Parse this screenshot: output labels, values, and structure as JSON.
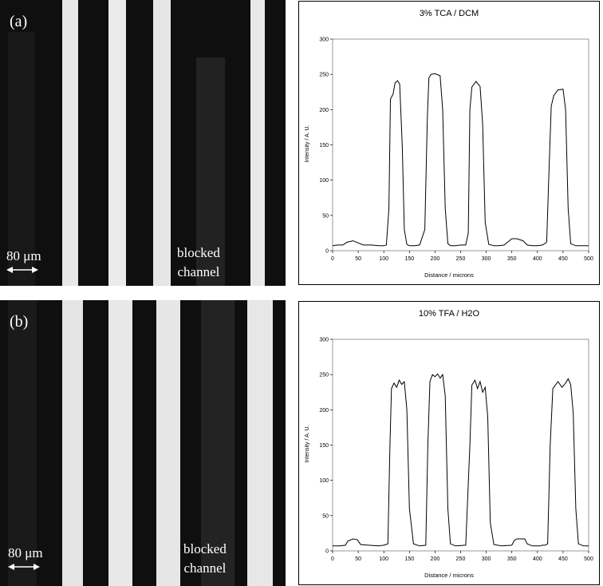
{
  "panels": [
    {
      "label": "(a)",
      "scale_text": "80 μm",
      "blocked_lines": [
        "blocked",
        "channel"
      ]
    },
    {
      "label": "(b)",
      "scale_text": "80 μm",
      "blocked_lines": [
        "blocked",
        "channel"
      ]
    }
  ],
  "colors": {
    "line": "#000000",
    "bright_stripe": "#e6e6e6",
    "dark_background": "#0f0f0f"
  },
  "chart_data": [
    {
      "type": "line",
      "title": "3% TCA / DCM",
      "xlabel": "Distance / microns",
      "ylabel": "Intensity / A. U.",
      "xlim": [
        0,
        500
      ],
      "ylim": [
        0,
        300
      ],
      "xticks": [
        "0",
        "50",
        "100",
        "150",
        "200",
        "250",
        "300",
        "350",
        "400",
        "450",
        "500"
      ],
      "yticks": [
        "0",
        "50",
        "100",
        "150",
        "200",
        "250",
        "300"
      ],
      "grid": false,
      "series": [
        {
          "x": [
            0,
            10,
            20,
            28,
            40,
            50,
            60,
            75,
            90,
            100,
            105,
            110,
            113,
            118,
            122,
            127,
            131,
            136,
            140,
            145,
            150,
            160,
            170,
            180,
            185,
            188,
            192,
            200,
            210,
            215,
            220,
            225,
            230,
            240,
            250,
            260,
            265,
            268,
            272,
            280,
            288,
            293,
            298,
            305,
            315,
            325,
            335,
            345,
            350,
            360,
            372,
            380,
            390,
            400,
            410,
            418,
            422,
            427,
            432,
            440,
            450,
            455,
            460,
            465,
            475,
            485,
            500
          ],
          "y": [
            7,
            8,
            8,
            12,
            14,
            11,
            8,
            8,
            7,
            7,
            8,
            60,
            215,
            222,
            238,
            241,
            236,
            150,
            30,
            9,
            7,
            7,
            8,
            30,
            190,
            245,
            250,
            251,
            248,
            200,
            60,
            10,
            7,
            7,
            8,
            8,
            25,
            200,
            232,
            240,
            233,
            180,
            40,
            9,
            7,
            7,
            8,
            14,
            17,
            17,
            14,
            8,
            7,
            7,
            8,
            12,
            100,
            205,
            220,
            228,
            229,
            200,
            60,
            10,
            7,
            7,
            7
          ]
        }
      ]
    },
    {
      "type": "line",
      "title": "10% TFA / H2O",
      "xlabel": "Distance / microns",
      "ylabel": "Intensity / A. U.",
      "xlim": [
        0,
        500
      ],
      "ylim": [
        0,
        300
      ],
      "xticks": [
        "0",
        "50",
        "100",
        "150",
        "200",
        "250",
        "300",
        "350",
        "400",
        "450",
        "500"
      ],
      "yticks": [
        "0",
        "50",
        "100",
        "150",
        "200",
        "250",
        "300"
      ],
      "grid": false,
      "series": [
        {
          "x": [
            0,
            15,
            25,
            30,
            40,
            48,
            55,
            70,
            90,
            100,
            108,
            112,
            115,
            120,
            125,
            130,
            135,
            140,
            145,
            150,
            158,
            170,
            182,
            186,
            190,
            195,
            200,
            205,
            210,
            215,
            220,
            225,
            230,
            240,
            260,
            268,
            272,
            278,
            283,
            288,
            293,
            298,
            303,
            308,
            315,
            330,
            350,
            355,
            360,
            375,
            380,
            390,
            405,
            410,
            415,
            420,
            425,
            430,
            440,
            448,
            455,
            460,
            465,
            470,
            475,
            480,
            490,
            500
          ],
          "y": [
            7,
            7,
            8,
            14,
            17,
            16,
            9,
            8,
            7,
            8,
            10,
            150,
            230,
            238,
            232,
            242,
            236,
            240,
            200,
            60,
            10,
            7,
            8,
            150,
            240,
            250,
            247,
            251,
            245,
            250,
            220,
            60,
            10,
            7,
            8,
            150,
            235,
            242,
            230,
            240,
            225,
            232,
            190,
            40,
            9,
            7,
            8,
            15,
            17,
            17,
            10,
            7,
            7,
            8,
            8,
            10,
            150,
            230,
            240,
            232,
            238,
            244,
            236,
            195,
            60,
            10,
            7,
            7
          ]
        }
      ]
    }
  ]
}
